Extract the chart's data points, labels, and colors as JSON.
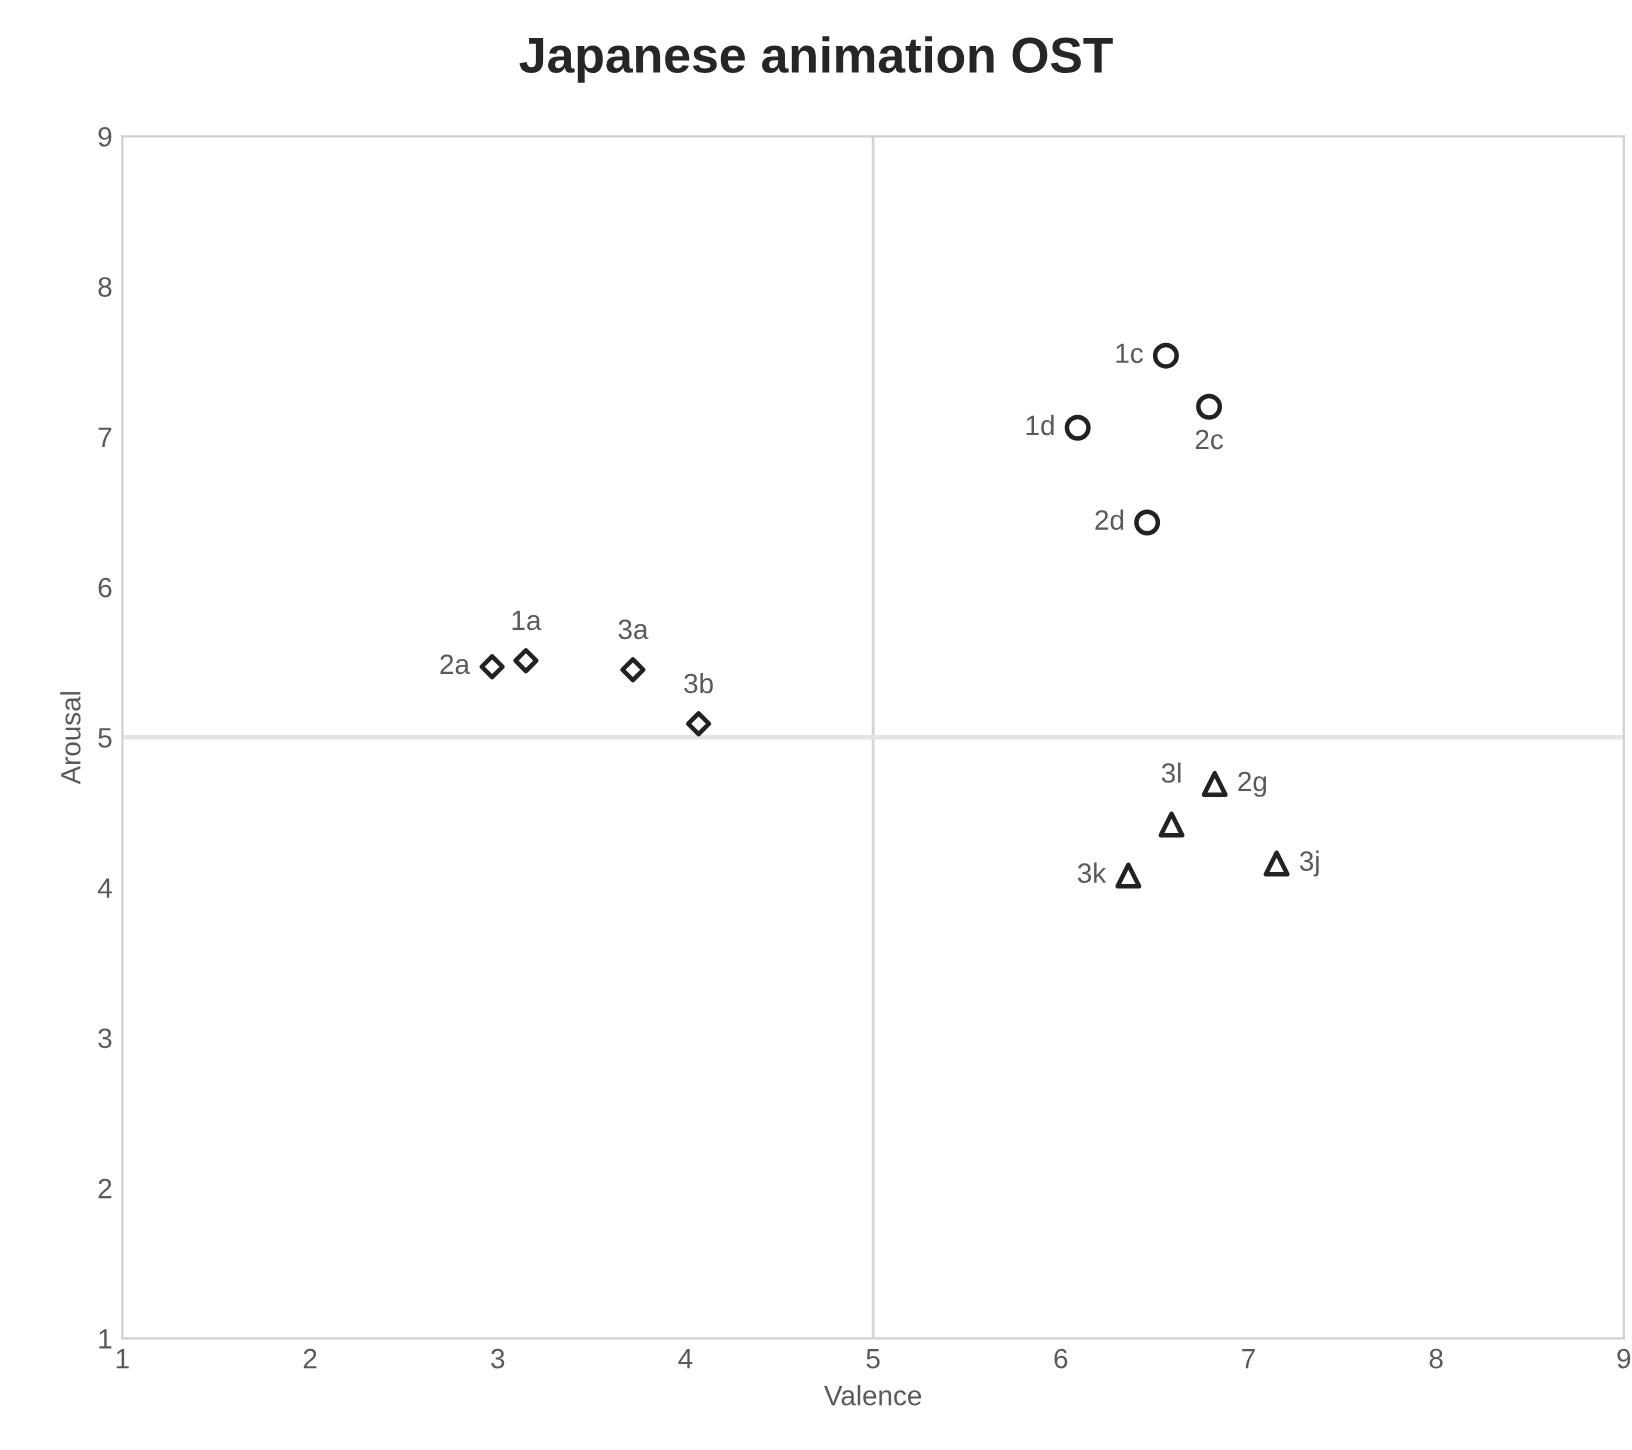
{
  "chart_data": {
    "type": "scatter",
    "title": "Japanese animation OST",
    "xlabel": "Valence",
    "ylabel": "Arousal",
    "xlim": [
      1,
      9
    ],
    "ylim": [
      1,
      9
    ],
    "xticks": [
      1,
      2,
      3,
      4,
      5,
      6,
      7,
      8,
      9
    ],
    "yticks": [
      1,
      2,
      3,
      4,
      5,
      6,
      7,
      8,
      9
    ],
    "grid": false,
    "legend": false,
    "series": [
      {
        "color": "#222222",
        "marker": "diamond",
        "x": [
          2.97,
          3.15,
          3.72,
          4.07
        ],
        "values": [
          5.47,
          5.51,
          5.45,
          5.09
        ]
      },
      {
        "color": "#222222",
        "marker": "circle",
        "x": [
          6.56,
          6.79,
          6.09,
          6.46
        ],
        "values": [
          7.54,
          7.2,
          7.06,
          6.43
        ]
      },
      {
        "color": "#222222",
        "marker": "triangle",
        "x": [
          6.82,
          6.59,
          7.15,
          6.36
        ],
        "values": [
          4.69,
          4.42,
          4.16,
          4.08
        ]
      }
    ],
    "ref_lines": [
      {
        "axis": "x",
        "value": 5,
        "color": "#d4d4d4"
      },
      {
        "axis": "y",
        "value": 5,
        "color": "#e4e4e4"
      }
    ],
    "annotations": [
      {
        "text": "2a",
        "x": 2.97,
        "y": 5.47
      },
      {
        "text": "1a",
        "x": 3.15,
        "y": 5.51
      },
      {
        "text": "3a",
        "x": 3.72,
        "y": 5.45
      },
      {
        "text": "3b",
        "x": 4.07,
        "y": 5.09
      },
      {
        "text": "1c",
        "x": 6.56,
        "y": 7.54
      },
      {
        "text": "2c",
        "x": 6.79,
        "y": 7.2
      },
      {
        "text": "1d",
        "x": 6.09,
        "y": 7.06
      },
      {
        "text": "2d",
        "x": 6.46,
        "y": 6.43
      },
      {
        "text": "2g",
        "x": 6.82,
        "y": 4.69
      },
      {
        "text": "3l",
        "x": 6.59,
        "y": 4.42
      },
      {
        "text": "3j",
        "x": 7.15,
        "y": 4.16
      },
      {
        "text": "3k",
        "x": 6.36,
        "y": 4.08
      }
    ]
  }
}
